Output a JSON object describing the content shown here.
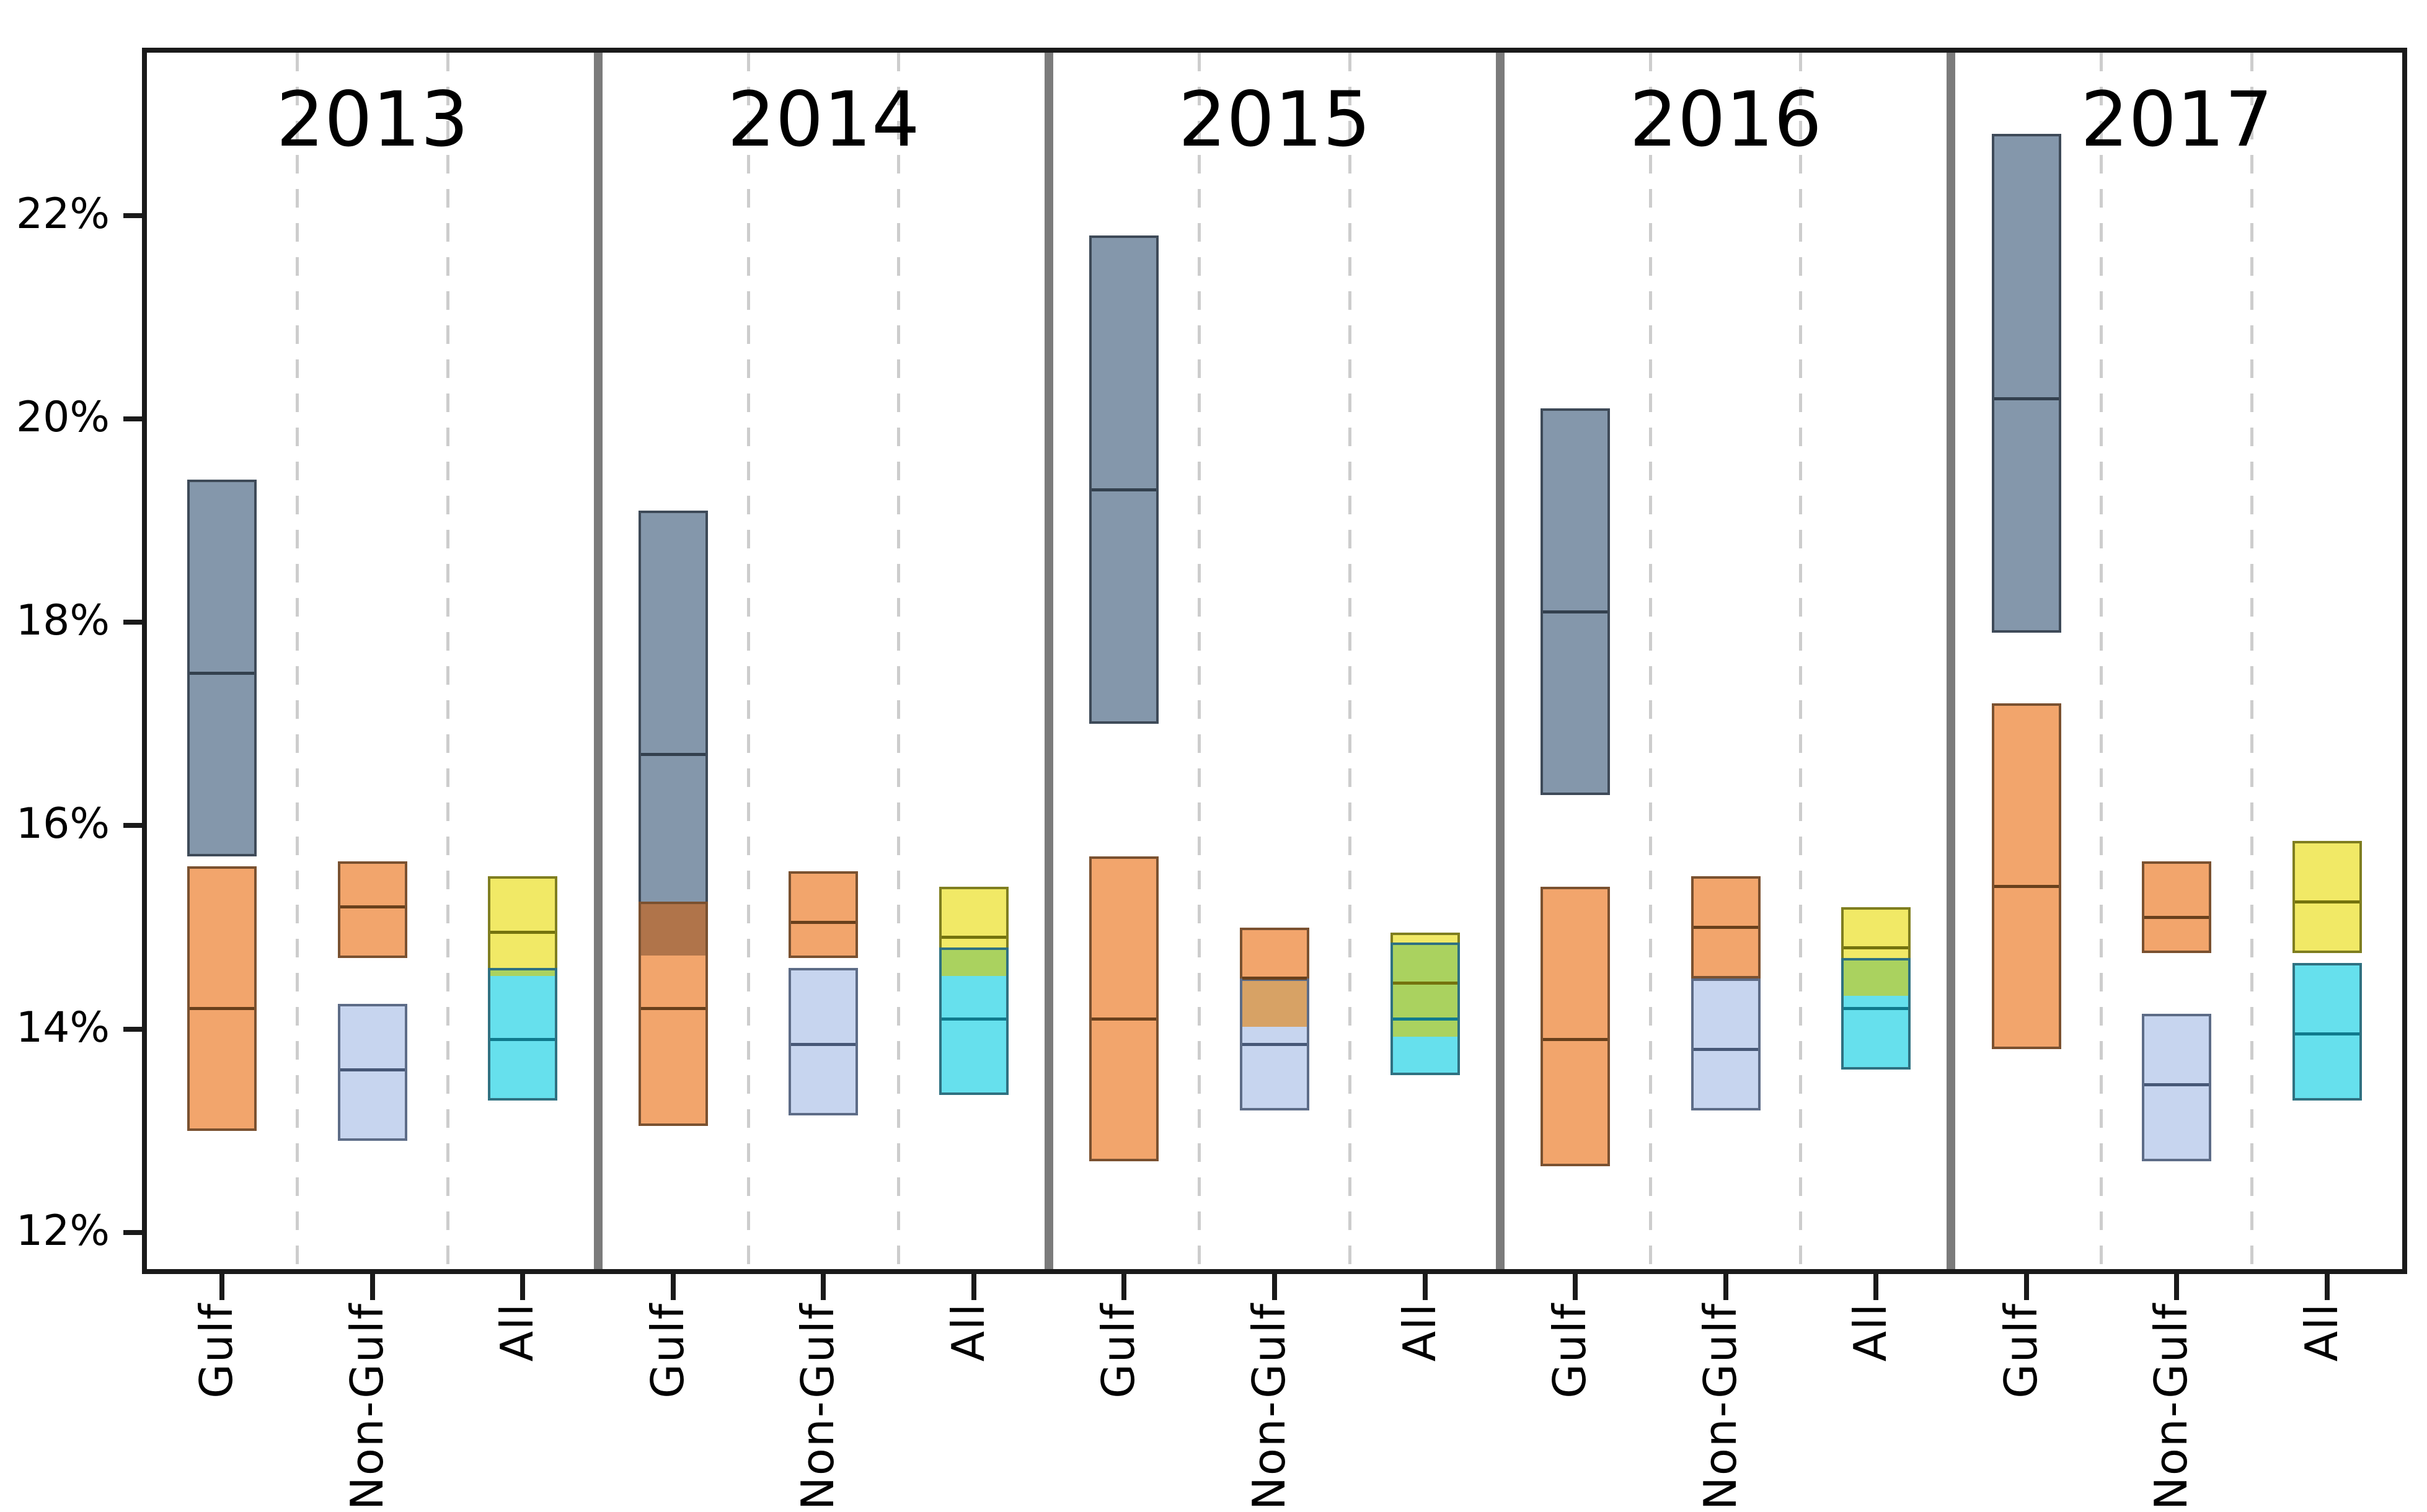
{
  "chart_data": {
    "type": "box",
    "subtype": "floating-range-boxes-with-median",
    "title": "",
    "xlabel": "",
    "ylabel": "",
    "grid": "vertical-dashed-column-separators",
    "legend": "none",
    "ylim": [
      11.64,
      23.6
    ],
    "y_ticks": [
      {
        "value": 22,
        "label": "22%"
      },
      {
        "value": 20,
        "label": "20%"
      },
      {
        "value": 18,
        "label": "18%"
      },
      {
        "value": 16,
        "label": "16%"
      },
      {
        "value": 14,
        "label": "14%"
      },
      {
        "value": 12,
        "label": "12%"
      }
    ],
    "column_labels": [
      "Gulf",
      "Non-Gulf",
      "All"
    ],
    "panels": [
      {
        "year": "2013",
        "columns": [
          {
            "label": "Gulf",
            "boxes": [
              {
                "color_key": "slate",
                "lo": 15.7,
                "med": 17.5,
                "hi": 19.4
              },
              {
                "color_key": "orange",
                "lo": 13.0,
                "med": 14.2,
                "hi": 15.6
              }
            ]
          },
          {
            "label": "Non-Gulf",
            "boxes": [
              {
                "color_key": "orange",
                "lo": 14.7,
                "med": 15.2,
                "hi": 15.65
              },
              {
                "color_key": "lavender",
                "lo": 12.9,
                "med": 13.6,
                "hi": 14.25
              }
            ]
          },
          {
            "label": "All",
            "boxes": [
              {
                "color_key": "yellow",
                "lo": 14.5,
                "med": 14.95,
                "hi": 15.5
              },
              {
                "color_key": "cyan",
                "lo": 13.3,
                "med": 13.9,
                "hi": 14.6
              }
            ]
          }
        ]
      },
      {
        "year": "2014",
        "columns": [
          {
            "label": "Gulf",
            "boxes": [
              {
                "color_key": "slate",
                "lo": 14.7,
                "med": 16.7,
                "hi": 19.1
              },
              {
                "color_key": "orange",
                "lo": 13.05,
                "med": 14.2,
                "hi": 15.25
              }
            ]
          },
          {
            "label": "Non-Gulf",
            "boxes": [
              {
                "color_key": "orange",
                "lo": 14.7,
                "med": 15.05,
                "hi": 15.55
              },
              {
                "color_key": "lavender",
                "lo": 13.15,
                "med": 13.85,
                "hi": 14.6
              }
            ]
          },
          {
            "label": "All",
            "boxes": [
              {
                "color_key": "yellow",
                "lo": 14.5,
                "med": 14.9,
                "hi": 15.4
              },
              {
                "color_key": "cyan",
                "lo": 13.35,
                "med": 14.1,
                "hi": 14.8
              }
            ]
          }
        ]
      },
      {
        "year": "2015",
        "columns": [
          {
            "label": "Gulf",
            "boxes": [
              {
                "color_key": "slate",
                "lo": 17.0,
                "med": 19.3,
                "hi": 21.8
              },
              {
                "color_key": "orange",
                "lo": 12.7,
                "med": 14.1,
                "hi": 15.7
              }
            ]
          },
          {
            "label": "Non-Gulf",
            "boxes": [
              {
                "color_key": "orange",
                "lo": 14.0,
                "med": 14.5,
                "hi": 15.0
              },
              {
                "color_key": "lavender",
                "lo": 13.2,
                "med": 13.85,
                "hi": 14.5
              }
            ]
          },
          {
            "label": "All",
            "boxes": [
              {
                "color_key": "yellow",
                "lo": 13.9,
                "med": 14.45,
                "hi": 14.95
              },
              {
                "color_key": "cyan",
                "lo": 13.55,
                "med": 14.1,
                "hi": 14.85
              }
            ]
          }
        ]
      },
      {
        "year": "2016",
        "columns": [
          {
            "label": "Gulf",
            "boxes": [
              {
                "color_key": "slate",
                "lo": 16.3,
                "med": 18.1,
                "hi": 20.1
              },
              {
                "color_key": "orange",
                "lo": 12.65,
                "med": 13.9,
                "hi": 15.4
              }
            ]
          },
          {
            "label": "Non-Gulf",
            "boxes": [
              {
                "color_key": "orange",
                "lo": 14.5,
                "med": 15.0,
                "hi": 15.5
              },
              {
                "color_key": "lavender",
                "lo": 13.2,
                "med": 13.8,
                "hi": 14.5
              }
            ]
          },
          {
            "label": "All",
            "boxes": [
              {
                "color_key": "yellow",
                "lo": 14.3,
                "med": 14.8,
                "hi": 15.2
              },
              {
                "color_key": "cyan",
                "lo": 13.6,
                "med": 14.2,
                "hi": 14.7
              }
            ]
          }
        ]
      },
      {
        "year": "2017",
        "columns": [
          {
            "label": "Gulf",
            "boxes": [
              {
                "color_key": "slate",
                "lo": 17.9,
                "med": 20.2,
                "hi": 22.8
              },
              {
                "color_key": "orange",
                "lo": 13.8,
                "med": 15.4,
                "hi": 17.2
              }
            ]
          },
          {
            "label": "Non-Gulf",
            "boxes": [
              {
                "color_key": "orange",
                "lo": 14.75,
                "med": 15.1,
                "hi": 15.65
              },
              {
                "color_key": "lavender",
                "lo": 12.7,
                "med": 13.45,
                "hi": 14.15
              }
            ]
          },
          {
            "label": "All",
            "boxes": [
              {
                "color_key": "yellow",
                "lo": 14.75,
                "med": 15.25,
                "hi": 15.85
              },
              {
                "color_key": "cyan",
                "lo": 13.3,
                "med": 13.95,
                "hi": 14.65
              }
            ]
          }
        ]
      }
    ],
    "colors": {
      "slate": {
        "fill": "#8497ab",
        "edge": "#3e4a58",
        "median": "#33404e"
      },
      "orange": {
        "fill": "#f2a56c",
        "edge": "#7a5130",
        "median": "#69401c"
      },
      "lavender": {
        "fill": "#c7d5ef",
        "edge": "#5d6c87",
        "median": "#475877"
      },
      "yellow": {
        "fill": "#f1e966",
        "edge": "#7f7e20",
        "median": "#74730e"
      },
      "cyan": {
        "fill": "#66e0ed",
        "edge": "#2f7181",
        "median": "#0f7a8d"
      },
      "overlaps": {
        "slate_orange": "#b0744a",
        "orange_lavender": "#d7a265",
        "yellow_cyan": "#aad25f"
      },
      "axis": "#1a1a1a",
      "panel_divider": "#7b7b7b",
      "dashed_gridline": "#cdcdcd",
      "background": "#ffffff"
    }
  }
}
